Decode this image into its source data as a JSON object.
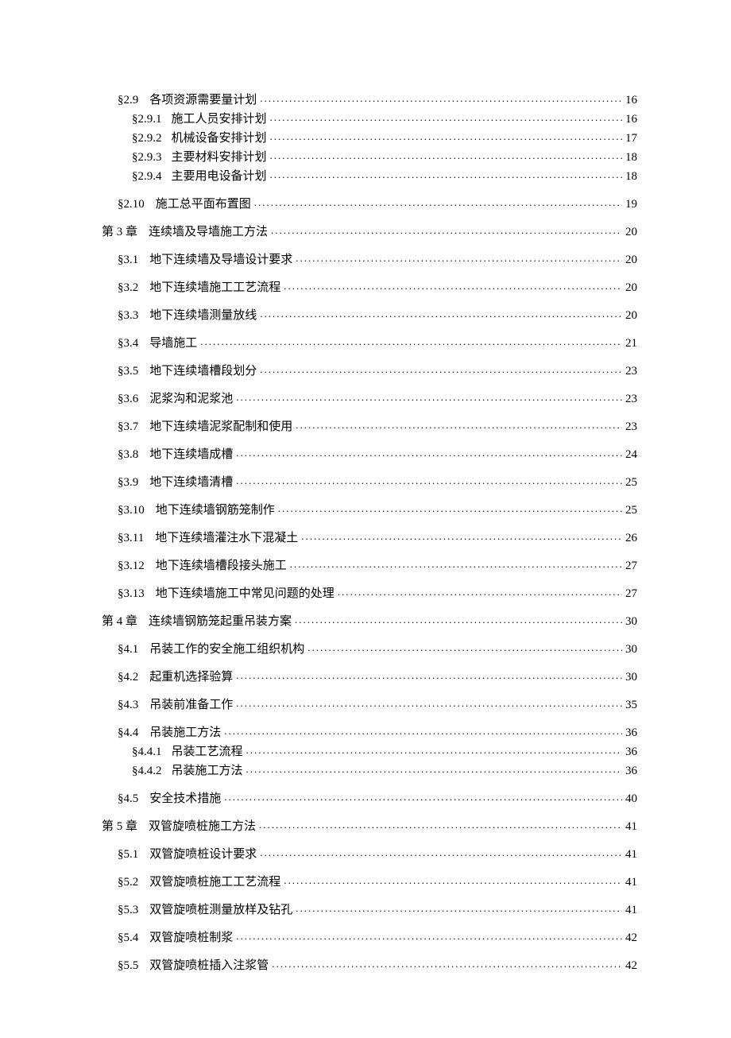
{
  "entries": [
    {
      "level": 2,
      "label": "§2.9",
      "title": "各项资源需要量计划",
      "page": "16"
    },
    {
      "level": 3,
      "label": "§2.9.1",
      "title": "施工人员安排计划",
      "page": "16"
    },
    {
      "level": 3,
      "label": "§2.9.2",
      "title": "机械设备安排计划",
      "page": "17"
    },
    {
      "level": 3,
      "label": "§2.9.3",
      "title": "主要材料安排计划",
      "page": "18"
    },
    {
      "level": 3,
      "label": "§2.9.4",
      "title": "主要用电设备计划",
      "page": "18"
    },
    {
      "level": 2,
      "label": "§2.10",
      "title": "施工总平面布置图",
      "page": "19"
    },
    {
      "level": 1,
      "label": "第 3 章",
      "title": "连续墙及导墙施工方法",
      "page": "20"
    },
    {
      "level": 2,
      "label": "§3.1",
      "title": "地下连续墙及导墙设计要求",
      "page": "20"
    },
    {
      "level": 2,
      "label": "§3.2",
      "title": "地下连续墙施工工艺流程",
      "page": "20"
    },
    {
      "level": 2,
      "label": "§3.3",
      "title": "地下连续墙测量放线",
      "page": "20"
    },
    {
      "level": 2,
      "label": "§3.4",
      "title": "导墙施工",
      "page": "21"
    },
    {
      "level": 2,
      "label": "§3.5",
      "title": "地下连续墙槽段划分",
      "page": "23"
    },
    {
      "level": 2,
      "label": "§3.6",
      "title": "泥浆沟和泥浆池",
      "page": "23"
    },
    {
      "level": 2,
      "label": "§3.7",
      "title": "地下连续墙泥浆配制和使用",
      "page": "23"
    },
    {
      "level": 2,
      "label": "§3.8",
      "title": "地下连续墙成槽",
      "page": "24"
    },
    {
      "level": 2,
      "label": "§3.9",
      "title": "地下连续墙清槽",
      "page": "25"
    },
    {
      "level": 2,
      "label": "§3.10",
      "title": "地下连续墙钢筋笼制作",
      "page": "25"
    },
    {
      "level": 2,
      "label": "§3.11",
      "title": "地下连续墙灌注水下混凝土",
      "page": "26"
    },
    {
      "level": 2,
      "label": "§3.12",
      "title": "地下连续墙槽段接头施工",
      "page": "27"
    },
    {
      "level": 2,
      "label": "§3.13",
      "title": "地下连续墙施工中常见问题的处理",
      "page": "27"
    },
    {
      "level": 1,
      "label": "第 4 章",
      "title": "连续墙钢筋笼起重吊装方案",
      "page": "30"
    },
    {
      "level": 2,
      "label": "§4.1",
      "title": "吊装工作的安全施工组织机构",
      "page": "30"
    },
    {
      "level": 2,
      "label": "§4.2",
      "title": "起重机选择验算",
      "page": "30"
    },
    {
      "level": 2,
      "label": "§4.3",
      "title": "吊装前准备工作",
      "page": "35"
    },
    {
      "level": 2,
      "label": "§4.4",
      "title": "吊装施工方法",
      "page": "36"
    },
    {
      "level": 3,
      "label": "§4.4.1",
      "title": "吊装工艺流程",
      "page": "36"
    },
    {
      "level": 3,
      "label": "§4.4.2",
      "title": "吊装施工方法",
      "page": "36"
    },
    {
      "level": 2,
      "label": "§4.5",
      "title": "安全技术措施",
      "page": "40"
    },
    {
      "level": 1,
      "label": "第 5 章",
      "title": "双管旋喷桩施工方法",
      "page": "41"
    },
    {
      "level": 2,
      "label": "§5.1",
      "title": "双管旋喷桩设计要求",
      "page": "41"
    },
    {
      "level": 2,
      "label": "§5.2",
      "title": "双管旋喷桩施工工艺流程",
      "page": "41"
    },
    {
      "level": 2,
      "label": "§5.3",
      "title": "双管旋喷桩测量放样及钻孔",
      "page": "41"
    },
    {
      "level": 2,
      "label": "§5.4",
      "title": "双管旋喷桩制浆",
      "page": "42"
    },
    {
      "level": 2,
      "label": "§5.5",
      "title": "双管旋喷桩插入注浆管",
      "page": "42"
    }
  ]
}
